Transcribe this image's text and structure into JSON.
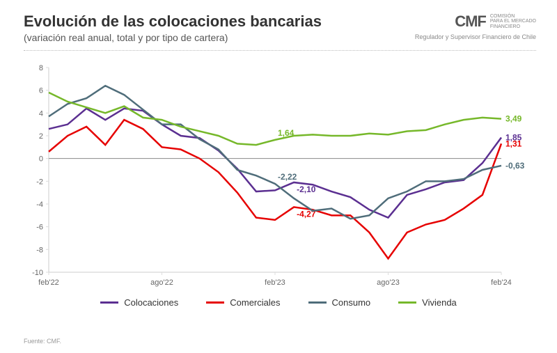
{
  "header": {
    "title": "Evolución de las colocaciones bancarias",
    "subtitle": "(variación real anual, total y por tipo de cartera)"
  },
  "logo": {
    "acronym": "CMF",
    "line1": "Comisión",
    "line2": "para el mercado",
    "line3": "financiero",
    "sub": "Regulador y Supervisor Financiero de Chile"
  },
  "chart": {
    "type": "line",
    "xlim": [
      0,
      24
    ],
    "ylim": [
      -10,
      8
    ],
    "ytick_step": 2,
    "yticks": [
      -10,
      -8,
      -6,
      -4,
      -2,
      0,
      2,
      4,
      6,
      8
    ],
    "xticks": [
      {
        "pos": 0,
        "label": "feb'22"
      },
      {
        "pos": 6,
        "label": "ago'22"
      },
      {
        "pos": 12,
        "label": "feb'23"
      },
      {
        "pos": 18,
        "label": "ago'23"
      },
      {
        "pos": 24,
        "label": "feb'24"
      }
    ],
    "background_color": "#ffffff",
    "grid_color": "#dddddd",
    "zero_line_color": "#888888",
    "label_fontsize": 11,
    "line_width": 2.5,
    "series": [
      {
        "name": "Colocaciones",
        "color": "#5b2f91",
        "data": [
          2.6,
          3.0,
          4.4,
          3.4,
          4.4,
          4.2,
          3.0,
          2.0,
          1.8,
          0.7,
          -0.9,
          -2.9,
          -2.8,
          -2.1,
          -2.3,
          -2.9,
          -3.4,
          -4.5,
          -5.2,
          -3.2,
          -2.7,
          -2.1,
          -1.9,
          -0.4,
          1.85
        ],
        "end_label": "1,85",
        "mid_annot": {
          "x": 13,
          "value": -2.1,
          "text": "-2,10",
          "dy": 14
        }
      },
      {
        "name": "Comerciales",
        "color": "#e60000",
        "data": [
          0.6,
          2.0,
          2.8,
          1.2,
          3.4,
          2.6,
          1.0,
          0.8,
          0.0,
          -1.2,
          -3.0,
          -5.2,
          -5.4,
          -4.27,
          -4.5,
          -5.0,
          -5.0,
          -6.5,
          -8.8,
          -6.5,
          -5.8,
          -5.4,
          -4.4,
          -3.2,
          1.31
        ],
        "end_label": "1,31",
        "mid_annot": {
          "x": 13,
          "value": -4.27,
          "text": "-4,27",
          "dy": 14
        }
      },
      {
        "name": "Consumo",
        "color": "#4f6d7a",
        "data": [
          3.7,
          4.8,
          5.3,
          6.4,
          5.6,
          4.3,
          3.0,
          3.0,
          1.7,
          0.8,
          -1.0,
          -1.5,
          -2.22,
          -3.5,
          -4.6,
          -4.4,
          -5.3,
          -5.0,
          -3.5,
          -2.9,
          -2.0,
          -2.0,
          -1.8,
          -1.0,
          -0.63
        ],
        "end_label": "-0,63",
        "mid_annot": {
          "x": 12,
          "value": -2.22,
          "text": "-2,22",
          "dy": -6
        }
      },
      {
        "name": "Vivienda",
        "color": "#76b82a",
        "data": [
          5.8,
          5.0,
          4.5,
          4.0,
          4.6,
          3.6,
          3.4,
          2.8,
          2.4,
          2.0,
          1.3,
          1.2,
          1.64,
          2.0,
          2.1,
          2.0,
          2.0,
          2.2,
          2.1,
          2.4,
          2.5,
          3.0,
          3.4,
          3.6,
          3.49
        ],
        "end_label": "3,49",
        "mid_annot": {
          "x": 12,
          "value": 1.64,
          "text": "1,64",
          "dy": -6
        }
      }
    ]
  },
  "legend": {
    "items": [
      {
        "label": "Colocaciones",
        "color": "#5b2f91"
      },
      {
        "label": "Comerciales",
        "color": "#e60000"
      },
      {
        "label": "Consumo",
        "color": "#4f6d7a"
      },
      {
        "label": "Vivienda",
        "color": "#76b82a"
      }
    ]
  },
  "source": "Fuente: CMF."
}
